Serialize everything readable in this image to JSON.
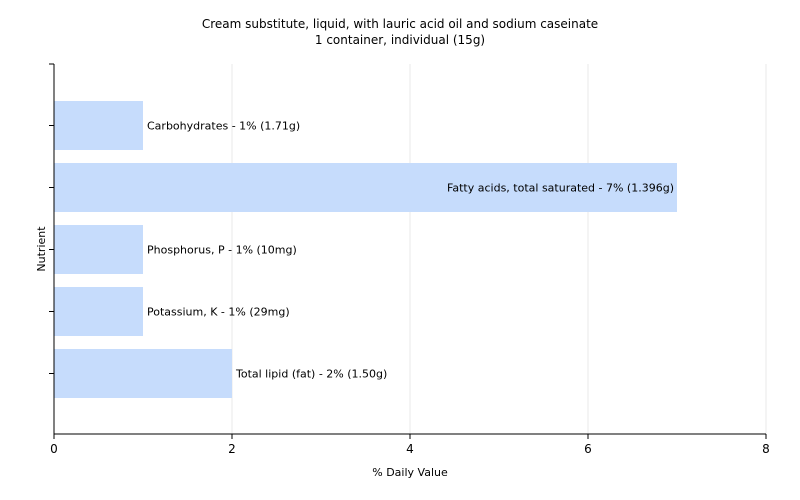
{
  "chart_data": {
    "type": "bar",
    "orientation": "horizontal",
    "title": "Cream substitute, liquid, with lauric acid oil and sodium caseinate",
    "subtitle": "1 container, individual (15g)",
    "xlabel": "% Daily Value",
    "ylabel": "Nutrient",
    "xlim": [
      0,
      8
    ],
    "xticks": [
      0,
      2,
      4,
      6,
      8
    ],
    "grid": true,
    "bar_color": "#c6dcfc",
    "categories": [
      "Carbohydrates",
      "Fatty acids, total saturated",
      "Phosphorus, P",
      "Potassium, K",
      "Total lipid (fat)"
    ],
    "values": [
      1,
      7,
      1,
      1,
      2
    ],
    "labels": [
      "Carbohydrates - 1% (1.71g)",
      "Fatty acids, total saturated - 7% (1.396g)",
      "Phosphorus, P - 1% (10mg)",
      "Potassium, K - 1% (29mg)",
      "Total lipid (fat) - 2% (1.50g)"
    ]
  }
}
